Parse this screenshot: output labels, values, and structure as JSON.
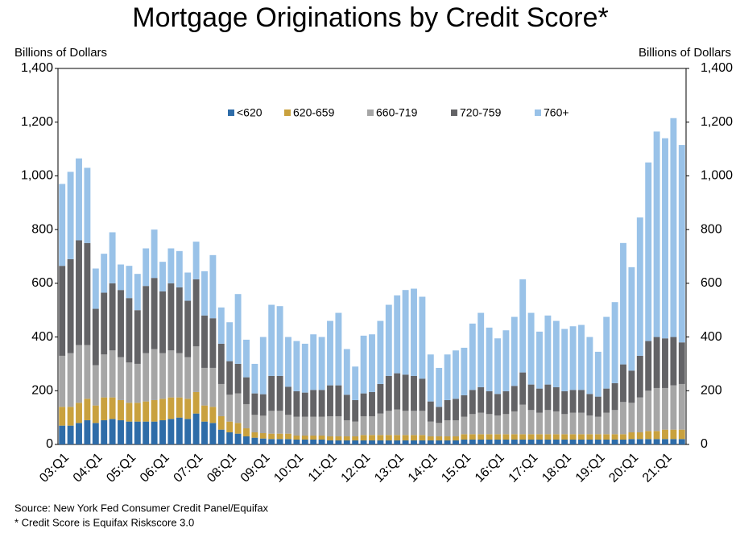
{
  "chart_data": {
    "type": "stacked_bar",
    "title": "Mortgage Originations by Credit Score*",
    "y_label": "Billions of Dollars",
    "y2_label": "Billions of Dollars",
    "notes": [
      "Source: New York Fed Consumer Credit Panel/Equifax",
      "* Credit Score is Equifax Riskscore 3.0"
    ],
    "categories": [
      "03:Q1",
      null,
      null,
      null,
      "04:Q1",
      null,
      null,
      null,
      "05:Q1",
      null,
      null,
      null,
      "06:Q1",
      null,
      null,
      null,
      "07:Q1",
      null,
      null,
      null,
      "08:Q1",
      null,
      null,
      null,
      "09:Q1",
      null,
      null,
      null,
      "10:Q1",
      null,
      null,
      null,
      "11:Q1",
      null,
      null,
      null,
      "12:Q1",
      null,
      null,
      null,
      "13:Q1",
      null,
      null,
      null,
      "14:Q1",
      null,
      null,
      null,
      "15:Q1",
      null,
      null,
      null,
      "16:Q1",
      null,
      null,
      null,
      "17:Q1",
      null,
      null,
      null,
      "18:Q1",
      null,
      null,
      null,
      "19:Q1",
      null,
      null,
      null,
      "20:Q1",
      null,
      null,
      null,
      "21:Q1",
      null,
      null
    ],
    "series": [
      {
        "name": "<620",
        "color": "#2e6ca8",
        "values": [
          70,
          70,
          80,
          90,
          80,
          90,
          95,
          90,
          85,
          85,
          85,
          85,
          90,
          95,
          100,
          95,
          115,
          85,
          80,
          55,
          45,
          40,
          30,
          25,
          22,
          20,
          20,
          20,
          18,
          18,
          18,
          18,
          15,
          15,
          15,
          15,
          15,
          15,
          15,
          15,
          15,
          15,
          15,
          15,
          15,
          15,
          15,
          15,
          18,
          18,
          18,
          18,
          18,
          18,
          18,
          18,
          18,
          18,
          18,
          18,
          18,
          18,
          18,
          18,
          18,
          18,
          18,
          18,
          20,
          20,
          20,
          20,
          20,
          20,
          20
        ]
      },
      {
        "name": "620-659",
        "color": "#c9a13e",
        "values": [
          70,
          70,
          75,
          80,
          65,
          85,
          80,
          75,
          70,
          70,
          75,
          80,
          80,
          80,
          75,
          75,
          80,
          60,
          60,
          50,
          40,
          40,
          30,
          20,
          20,
          20,
          20,
          20,
          15,
          15,
          15,
          15,
          15,
          15,
          15,
          15,
          20,
          20,
          20,
          20,
          20,
          20,
          20,
          20,
          15,
          15,
          15,
          15,
          20,
          20,
          20,
          20,
          20,
          20,
          20,
          20,
          20,
          20,
          20,
          20,
          20,
          20,
          20,
          20,
          20,
          20,
          20,
          20,
          25,
          25,
          30,
          30,
          35,
          35,
          35
        ]
      },
      {
        "name": "660-719",
        "color": "#a6a6a6",
        "values": [
          190,
          200,
          215,
          200,
          150,
          160,
          175,
          160,
          150,
          145,
          180,
          190,
          170,
          175,
          165,
          155,
          170,
          140,
          145,
          120,
          100,
          110,
          90,
          65,
          65,
          85,
          85,
          70,
          70,
          70,
          70,
          70,
          75,
          75,
          60,
          55,
          70,
          70,
          80,
          90,
          95,
          90,
          90,
          90,
          55,
          50,
          60,
          60,
          65,
          75,
          80,
          75,
          70,
          75,
          85,
          110,
          90,
          80,
          90,
          85,
          75,
          80,
          80,
          70,
          65,
          80,
          90,
          120,
          110,
          130,
          150,
          160,
          155,
          165,
          170
        ]
      },
      {
        "name": "720-759",
        "color": "#636366",
        "values": [
          335,
          350,
          390,
          380,
          210,
          230,
          250,
          250,
          240,
          200,
          250,
          265,
          230,
          250,
          245,
          210,
          250,
          195,
          185,
          150,
          125,
          110,
          100,
          80,
          80,
          130,
          130,
          105,
          95,
          90,
          100,
          100,
          115,
          115,
          95,
          80,
          85,
          90,
          110,
          130,
          135,
          135,
          130,
          120,
          75,
          60,
          75,
          80,
          80,
          90,
          95,
          85,
          80,
          85,
          95,
          120,
          95,
          90,
          95,
          90,
          85,
          85,
          85,
          80,
          75,
          90,
          100,
          140,
          120,
          155,
          185,
          190,
          185,
          180,
          155
        ]
      },
      {
        "name": "760+",
        "color": "#99c2e8",
        "values": [
          305,
          325,
          305,
          280,
          150,
          145,
          190,
          95,
          120,
          135,
          140,
          180,
          110,
          130,
          135,
          105,
          140,
          165,
          235,
          135,
          145,
          260,
          140,
          110,
          213,
          265,
          260,
          185,
          187,
          182,
          207,
          197,
          240,
          270,
          170,
          125,
          215,
          215,
          235,
          265,
          290,
          315,
          325,
          305,
          175,
          145,
          170,
          180,
          177,
          247,
          277,
          237,
          207,
          227,
          257,
          347,
          267,
          212,
          257,
          247,
          232,
          237,
          242,
          212,
          167,
          267,
          302,
          452,
          385,
          515,
          665,
          765,
          745,
          815,
          735
        ]
      }
    ],
    "ylim": [
      0,
      1400
    ],
    "yticks": [
      0,
      200,
      400,
      600,
      800,
      {
        "value": 1000,
        "label": "1,000"
      },
      {
        "value": 1200,
        "label": "1,200"
      },
      {
        "value": 1400,
        "label": "1,400"
      }
    ],
    "y2lim": [
      0,
      1400
    ],
    "y2ticks": [
      0,
      200,
      400,
      600,
      800,
      {
        "value": 1000,
        "label": "1,000"
      },
      {
        "value": 1200,
        "label": "1,200"
      },
      {
        "value": 1400,
        "label": "1,400"
      }
    ],
    "legend": "top"
  }
}
